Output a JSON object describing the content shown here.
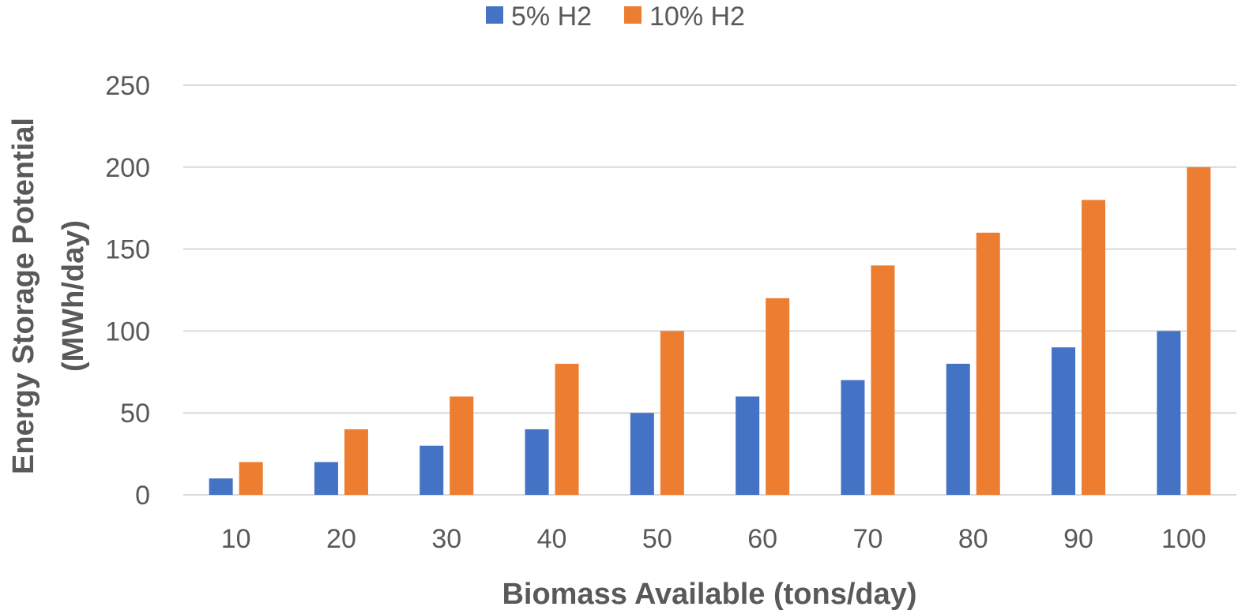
{
  "chart_data": {
    "type": "bar",
    "categories": [
      "10",
      "20",
      "30",
      "40",
      "50",
      "60",
      "70",
      "80",
      "90",
      "100"
    ],
    "series": [
      {
        "name": "5% H2",
        "color": "#4472c4",
        "values": [
          10,
          20,
          30,
          40,
          50,
          60,
          70,
          80,
          90,
          100
        ]
      },
      {
        "name": "10% H2",
        "color": "#ed7d31",
        "values": [
          20,
          40,
          60,
          80,
          100,
          120,
          140,
          160,
          180,
          200
        ]
      }
    ],
    "title": "",
    "xlabel": "Biomass Available (tons/day)",
    "ylabel_lines": [
      "Energy Storage Potential",
      "(MWh/day)"
    ],
    "ylim": [
      0,
      250
    ],
    "yticks": [
      0,
      50,
      100,
      150,
      200,
      250
    ],
    "grid": true,
    "legend_position": "top"
  }
}
